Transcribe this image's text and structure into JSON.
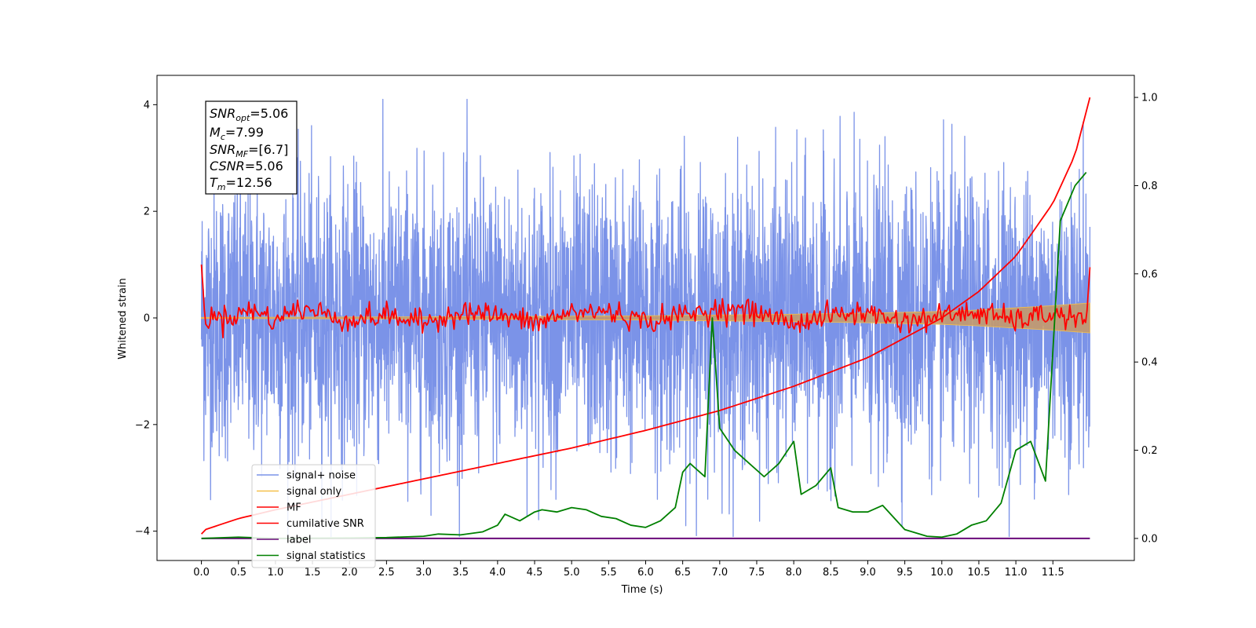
{
  "chart_data": {
    "type": "line",
    "xlabel": "Time (s)",
    "ylabel": "Whitened strain",
    "xlim": [
      -0.6,
      12.6
    ],
    "ylim": [
      -4.55,
      4.55
    ],
    "ylim_right": [
      -0.05,
      1.05
    ],
    "xticks": [
      "0.0",
      "0.5",
      "1.0",
      "1.5",
      "2.0",
      "2.5",
      "3.0",
      "3.5",
      "4.0",
      "4.5",
      "5.0",
      "5.5",
      "6.0",
      "6.5",
      "7.0",
      "7.5",
      "8.0",
      "8.5",
      "9.0",
      "9.5",
      "10.0",
      "10.5",
      "11.0",
      "11.5"
    ],
    "yticks_left": [
      "4",
      "2",
      "0",
      "−2",
      "−4"
    ],
    "yticks_right": [
      "1.0",
      "0.8",
      "0.6",
      "0.4",
      "0.2",
      "0.0"
    ],
    "annotation": {
      "snr_opt": "=5.06",
      "mc": "=7.99",
      "snr_mf": "=[6.7]",
      "csnr": "=5.06",
      "tm": "=12.56"
    },
    "legend": {
      "placement": "lower-left",
      "entries": [
        "signal+ noise",
        "signal only",
        "MF",
        "cumilative SNR",
        "label",
        "signal statistics"
      ]
    },
    "colors": {
      "signal_noise": "#7b93e8",
      "signal_only": "#f5c04a",
      "signal_band": "#c49a6c",
      "mf": "#ff0000",
      "cumulative_snr": "#ff0000",
      "label": "#6a0a7a",
      "signal_statistics": "#008000"
    },
    "series": [
      {
        "name": "signal+ noise",
        "axis": "left",
        "description_values": {
          "t_start": 0.0,
          "t_end": 12.0,
          "std": 1.3,
          "min": -4.1,
          "max": 4.1
        }
      },
      {
        "name": "signal only",
        "axis": "left",
        "x": [
          0,
          3,
          6,
          8,
          9,
          10,
          10.5,
          11,
          11.5,
          11.9,
          12.0
        ],
        "envelope": [
          0.01,
          0.02,
          0.04,
          0.07,
          0.09,
          0.12,
          0.15,
          0.19,
          0.23,
          0.27,
          0.28
        ]
      },
      {
        "name": "MF",
        "axis": "left",
        "x": [
          0.0,
          0.02,
          0.05,
          0.1,
          0.15,
          0.3,
          0.7,
          1.0,
          1.3,
          1.6,
          2.0,
          2.5,
          3.0,
          3.5,
          4.0,
          4.5,
          5.0,
          5.5,
          6.0,
          6.5,
          7.0,
          7.5,
          8.0,
          8.5,
          9.0,
          9.5,
          10.0,
          10.5,
          11.0,
          11.5,
          11.95,
          12.0
        ],
        "y": [
          1.0,
          0.6,
          -0.1,
          -0.2,
          0.1,
          0.0,
          0.3,
          -0.1,
          0.35,
          0.2,
          -0.1,
          0.1,
          -0.2,
          0.25,
          0.1,
          -0.2,
          0.2,
          0.25,
          -0.15,
          0.1,
          0.35,
          0.2,
          -0.2,
          0.1,
          0.2,
          -0.15,
          0.1,
          0.2,
          -0.1,
          0.15,
          -0.1,
          0.95
        ]
      },
      {
        "name": "cumilative SNR",
        "axis": "right",
        "x": [
          0.0,
          0.05,
          0.5,
          1.0,
          2.0,
          3.0,
          4.0,
          5.0,
          6.0,
          7.0,
          8.0,
          9.0,
          10.0,
          10.5,
          11.0,
          11.5,
          11.8,
          12.0
        ],
        "y": [
          0.01,
          0.02,
          0.045,
          0.065,
          0.1,
          0.135,
          0.17,
          0.205,
          0.245,
          0.29,
          0.345,
          0.41,
          0.5,
          0.56,
          0.64,
          0.76,
          0.87,
          1.0
        ]
      },
      {
        "name": "label",
        "axis": "right",
        "x": [
          0.0,
          12.0
        ],
        "y": [
          0.0,
          0.0
        ]
      },
      {
        "name": "signal statistics",
        "axis": "right",
        "x": [
          0.0,
          0.5,
          1.0,
          2.0,
          2.5,
          3.0,
          3.2,
          3.5,
          3.8,
          4.0,
          4.1,
          4.3,
          4.5,
          4.6,
          4.8,
          5.0,
          5.2,
          5.4,
          5.6,
          5.8,
          6.0,
          6.2,
          6.4,
          6.5,
          6.6,
          6.8,
          6.9,
          7.0,
          7.2,
          7.4,
          7.6,
          7.8,
          8.0,
          8.1,
          8.3,
          8.5,
          8.6,
          8.8,
          9.0,
          9.2,
          9.5,
          9.8,
          10.0,
          10.2,
          10.4,
          10.6,
          10.8,
          11.0,
          11.2,
          11.4,
          11.6,
          11.8,
          11.95
        ],
        "y": [
          0.0,
          0.003,
          0.0,
          0.001,
          0.002,
          0.005,
          0.01,
          0.008,
          0.015,
          0.03,
          0.055,
          0.04,
          0.06,
          0.065,
          0.06,
          0.07,
          0.065,
          0.05,
          0.045,
          0.03,
          0.025,
          0.04,
          0.07,
          0.15,
          0.17,
          0.14,
          0.5,
          0.25,
          0.2,
          0.17,
          0.14,
          0.17,
          0.22,
          0.1,
          0.12,
          0.16,
          0.07,
          0.06,
          0.06,
          0.075,
          0.02,
          0.005,
          0.003,
          0.01,
          0.03,
          0.04,
          0.08,
          0.2,
          0.22,
          0.13,
          0.72,
          0.8,
          0.83
        ]
      }
    ]
  }
}
